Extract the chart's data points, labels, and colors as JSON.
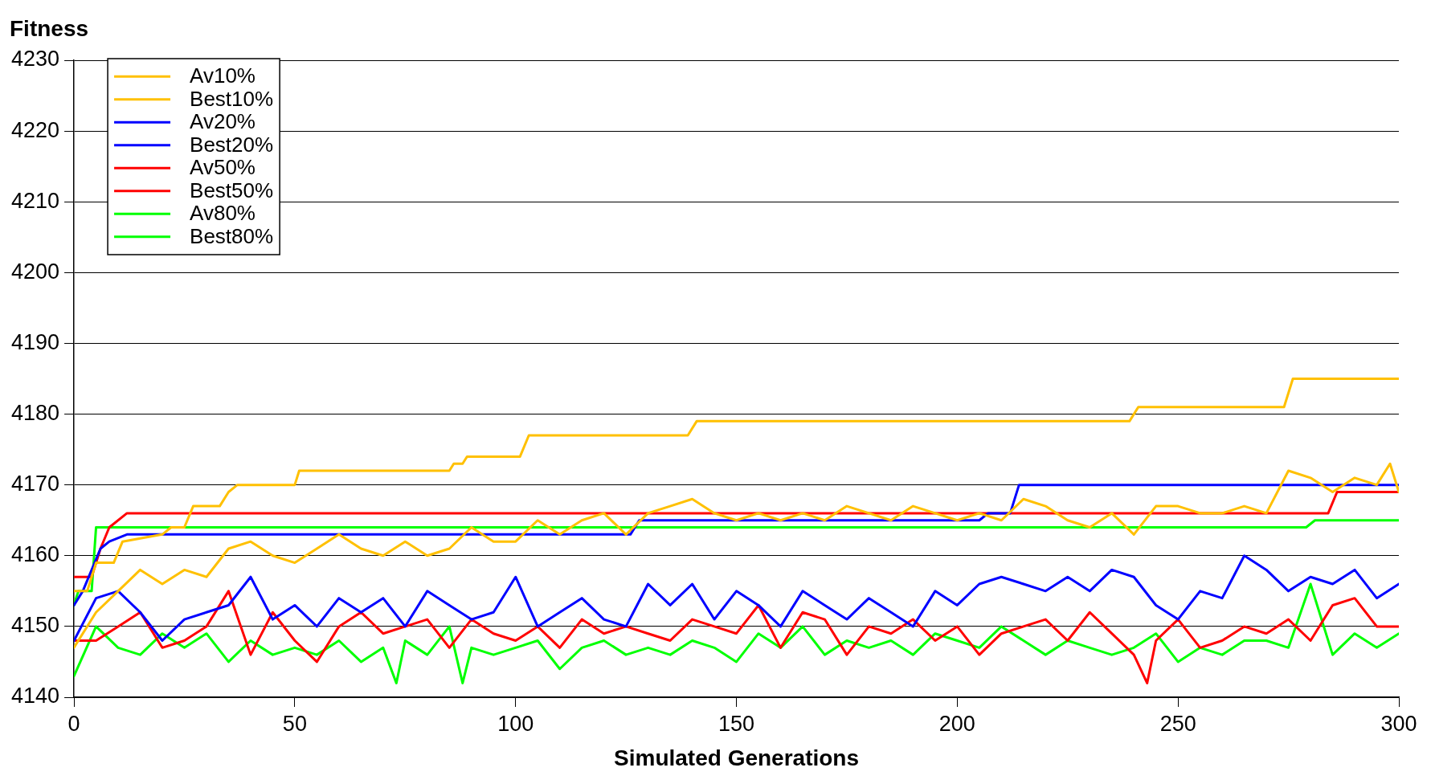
{
  "chart_data": {
    "type": "line",
    "ylabel": "Fitness",
    "xlabel": "Simulated Generations",
    "xlim": [
      0,
      300
    ],
    "xticks": [
      0,
      50,
      100,
      150,
      200,
      250,
      300
    ],
    "ylim": [
      4140,
      4230
    ],
    "yticks": [
      4140,
      4150,
      4160,
      4170,
      4180,
      4190,
      4200,
      4210,
      4220,
      4230
    ],
    "grid": "y",
    "legend": "top left",
    "series": [
      {
        "name": "Av10%",
        "color": "#ffc000",
        "x": [
          0,
          5,
          10,
          15,
          20,
          25,
          30,
          35,
          40,
          45,
          50,
          55,
          60,
          65,
          70,
          75,
          80,
          85,
          90,
          95,
          100,
          105,
          110,
          115,
          120,
          125,
          130,
          135,
          140,
          145,
          150,
          155,
          160,
          165,
          170,
          175,
          180,
          185,
          190,
          195,
          200,
          205,
          210,
          215,
          220,
          225,
          230,
          235,
          240,
          245,
          250,
          255,
          260,
          265,
          270,
          275,
          280,
          285,
          290,
          295,
          298,
          300
        ],
        "values": [
          4147,
          4152,
          4155,
          4158,
          4156,
          4158,
          4157,
          4161,
          4162,
          4160,
          4159,
          4161,
          4163,
          4161,
          4160,
          4162,
          4160,
          4161,
          4164,
          4162,
          4162,
          4165,
          4163,
          4165,
          4166,
          4163,
          4166,
          4167,
          4168,
          4166,
          4165,
          4166,
          4165,
          4166,
          4165,
          4167,
          4166,
          4165,
          4167,
          4166,
          4165,
          4166,
          4165,
          4168,
          4167,
          4165,
          4164,
          4166,
          4163,
          4167,
          4167,
          4166,
          4166,
          4167,
          4166,
          4172,
          4171,
          4169,
          4171,
          4170,
          4173,
          4169
        ]
      },
      {
        "name": "Best10%",
        "color": "#ffc000",
        "x": [
          0,
          3,
          5,
          9,
          11,
          20,
          22,
          25,
          27,
          33,
          35,
          37,
          50,
          51,
          85,
          86,
          88,
          89,
          101,
          103,
          139,
          141,
          239,
          241,
          274,
          276,
          300
        ],
        "values": [
          4155,
          4155,
          4159,
          4159,
          4162,
          4163,
          4164,
          4164,
          4167,
          4167,
          4169,
          4170,
          4170,
          4172,
          4172,
          4173,
          4173,
          4174,
          4174,
          4177,
          4177,
          4179,
          4179,
          4181,
          4181,
          4185,
          4185
        ]
      },
      {
        "name": "Av20%",
        "color": "#0000ff",
        "x": [
          0,
          5,
          10,
          15,
          20,
          25,
          30,
          35,
          40,
          45,
          50,
          55,
          60,
          65,
          70,
          75,
          80,
          85,
          90,
          95,
          100,
          105,
          110,
          115,
          120,
          125,
          130,
          135,
          140,
          145,
          150,
          155,
          160,
          165,
          170,
          175,
          180,
          185,
          190,
          195,
          200,
          205,
          210,
          215,
          220,
          225,
          230,
          235,
          240,
          245,
          250,
          255,
          260,
          265,
          270,
          275,
          280,
          285,
          290,
          295,
          300
        ],
        "values": [
          4148,
          4154,
          4155,
          4152,
          4148,
          4151,
          4152,
          4153,
          4157,
          4151,
          4153,
          4150,
          4154,
          4152,
          4154,
          4150,
          4155,
          4153,
          4151,
          4152,
          4157,
          4150,
          4152,
          4154,
          4151,
          4150,
          4156,
          4153,
          4156,
          4151,
          4155,
          4153,
          4150,
          4155,
          4153,
          4151,
          4154,
          4152,
          4150,
          4155,
          4153,
          4156,
          4157,
          4156,
          4155,
          4157,
          4155,
          4158,
          4157,
          4153,
          4151,
          4155,
          4154,
          4160,
          4158,
          4155,
          4157,
          4156,
          4158,
          4154,
          4156
        ]
      },
      {
        "name": "Best20%",
        "color": "#0000ff",
        "x": [
          0,
          2,
          6,
          8,
          12,
          126,
          128,
          205,
          207,
          212,
          214,
          300
        ],
        "values": [
          4153,
          4155,
          4161,
          4162,
          4163,
          4163,
          4165,
          4165,
          4166,
          4166,
          4170,
          4170
        ]
      },
      {
        "name": "Av50%",
        "color": "#ff0000",
        "x": [
          0,
          5,
          10,
          15,
          20,
          25,
          30,
          35,
          40,
          45,
          50,
          55,
          60,
          65,
          70,
          75,
          80,
          85,
          90,
          95,
          100,
          105,
          110,
          115,
          120,
          125,
          130,
          135,
          140,
          145,
          150,
          155,
          160,
          165,
          170,
          175,
          180,
          185,
          190,
          195,
          200,
          205,
          210,
          215,
          220,
          225,
          230,
          235,
          240,
          243,
          245,
          250,
          255,
          260,
          265,
          270,
          275,
          280,
          285,
          290,
          295,
          300
        ],
        "values": [
          4148,
          4148,
          4150,
          4152,
          4147,
          4148,
          4150,
          4155,
          4146,
          4152,
          4148,
          4145,
          4150,
          4152,
          4149,
          4150,
          4151,
          4147,
          4151,
          4149,
          4148,
          4150,
          4147,
          4151,
          4149,
          4150,
          4149,
          4148,
          4151,
          4150,
          4149,
          4153,
          4147,
          4152,
          4151,
          4146,
          4150,
          4149,
          4151,
          4148,
          4150,
          4146,
          4149,
          4150,
          4151,
          4148,
          4152,
          4149,
          4146,
          4142,
          4148,
          4151,
          4147,
          4148,
          4150,
          4149,
          4151,
          4148,
          4153,
          4154,
          4150,
          4150
        ]
      },
      {
        "name": "Best50%",
        "color": "#ff0000",
        "x": [
          0,
          4,
          6,
          8,
          12,
          284,
          286,
          300
        ],
        "values": [
          4157,
          4157,
          4161,
          4164,
          4166,
          4166,
          4169,
          4169
        ]
      },
      {
        "name": "Av80%",
        "color": "#00ff00",
        "x": [
          0,
          5,
          10,
          15,
          20,
          25,
          30,
          35,
          40,
          45,
          50,
          55,
          60,
          65,
          70,
          73,
          75,
          80,
          85,
          88,
          90,
          95,
          100,
          105,
          110,
          115,
          120,
          125,
          130,
          135,
          140,
          145,
          150,
          155,
          160,
          165,
          170,
          175,
          180,
          185,
          190,
          195,
          200,
          205,
          210,
          215,
          220,
          225,
          230,
          235,
          240,
          245,
          250,
          255,
          260,
          265,
          270,
          275,
          280,
          285,
          290,
          295,
          300
        ],
        "values": [
          4143,
          4150,
          4147,
          4146,
          4149,
          4147,
          4149,
          4145,
          4148,
          4146,
          4147,
          4146,
          4148,
          4145,
          4147,
          4142,
          4148,
          4146,
          4150,
          4142,
          4147,
          4146,
          4147,
          4148,
          4144,
          4147,
          4148,
          4146,
          4147,
          4146,
          4148,
          4147,
          4145,
          4149,
          4147,
          4150,
          4146,
          4148,
          4147,
          4148,
          4146,
          4149,
          4148,
          4147,
          4150,
          4148,
          4146,
          4148,
          4147,
          4146,
          4147,
          4149,
          4145,
          4147,
          4146,
          4148,
          4148,
          4147,
          4156,
          4146,
          4149,
          4147,
          4149
        ]
      },
      {
        "name": "Best80%",
        "color": "#00ff00",
        "x": [
          0,
          1,
          4,
          5,
          279,
          281,
          300
        ],
        "values": [
          4153,
          4155,
          4155,
          4164,
          4164,
          4165,
          4165
        ]
      }
    ]
  }
}
